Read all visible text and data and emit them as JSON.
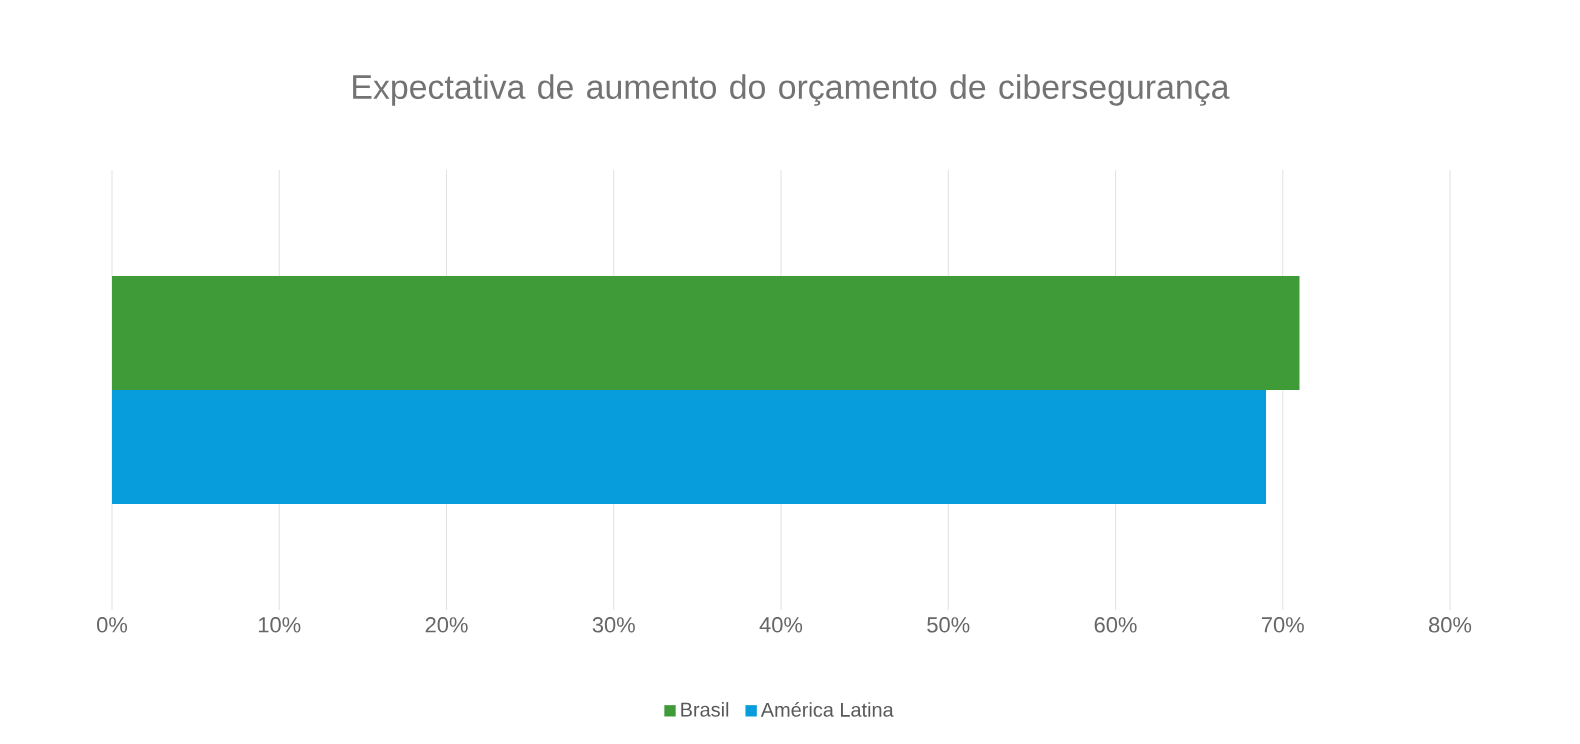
{
  "chart_data": {
    "type": "bar",
    "orientation": "horizontal",
    "title": "Expectativa de aumento do orçamento de cibersegurança",
    "categories": [
      null
    ],
    "series": [
      {
        "name": "Brasil",
        "color": "#3e9b37",
        "values": [
          71
        ]
      },
      {
        "name": "América Latina",
        "color": "#079ddc",
        "values": [
          69
        ]
      }
    ],
    "xlim": [
      0,
      80
    ],
    "xticks": [
      {
        "value": 0,
        "label": "0%"
      },
      {
        "value": 10,
        "label": "10%"
      },
      {
        "value": 20,
        "label": "20%"
      },
      {
        "value": 30,
        "label": "30%"
      },
      {
        "value": 40,
        "label": "40%"
      },
      {
        "value": 50,
        "label": "50%"
      },
      {
        "value": 60,
        "label": "60%"
      },
      {
        "value": 70,
        "label": "70%"
      },
      {
        "value": 80,
        "label": "80%"
      }
    ],
    "grid": "x",
    "legend": "bottom"
  }
}
